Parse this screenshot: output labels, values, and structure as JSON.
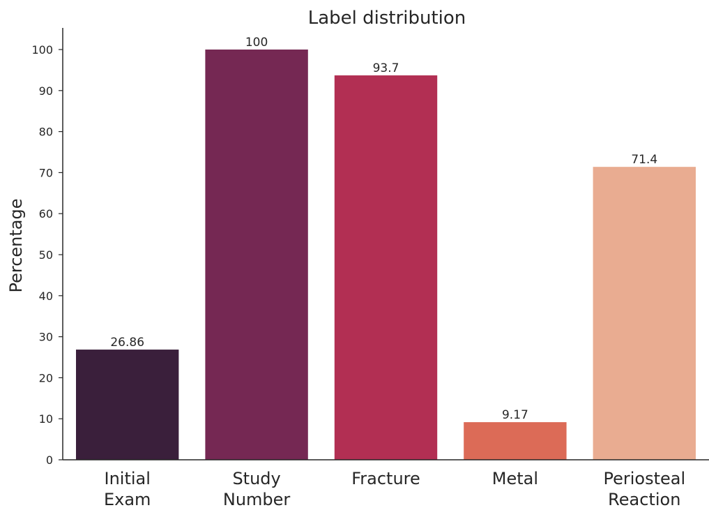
{
  "chart_data": {
    "type": "bar",
    "title": "Label distribution",
    "xlabel": "",
    "ylabel": "Percentage",
    "categories": [
      [
        "Initial",
        "Exam"
      ],
      [
        "Study",
        "Number"
      ],
      [
        "Fracture"
      ],
      [
        "Metal"
      ],
      [
        "Periosteal",
        "Reaction"
      ]
    ],
    "values": [
      26.86,
      100,
      93.7,
      9.17,
      71.4
    ],
    "data_labels": [
      "26.86",
      "100",
      "93.7",
      "9.17",
      "71.4"
    ],
    "colors": [
      "#3a1f3b",
      "#752853",
      "#b22f53",
      "#dc6b57",
      "#e9ac91"
    ],
    "ylim": [
      0,
      105
    ],
    "yticks": [
      0,
      10,
      20,
      30,
      40,
      50,
      60,
      70,
      80,
      90,
      100
    ],
    "grid": false,
    "legend": "none"
  }
}
